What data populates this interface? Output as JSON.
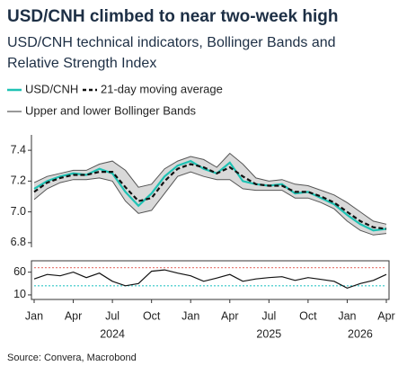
{
  "chart_data": [
    {
      "type": "line",
      "title": "USD/CNH climbed to near two-week high",
      "subtitle": "USD/CNH technical indicators, Bollinger Bands and Relative Strength Index",
      "source": "Source: Convera, Macrobond",
      "x": [
        "2024-01",
        "2024-02",
        "2024-03",
        "2024-04",
        "2024-05",
        "2024-06",
        "2024-07",
        "2024-08",
        "2024-09",
        "2024-10",
        "2024-11",
        "2024-12",
        "2025-01",
        "2025-02",
        "2025-03",
        "2025-04",
        "2025-05",
        "2025-06",
        "2025-07",
        "2025-08",
        "2025-09",
        "2025-10",
        "2025-11",
        "2025-12",
        "2026-01",
        "2026-02",
        "2026-03",
        "2026-04"
      ],
      "xlim": [
        "2024-01",
        "2026-04"
      ],
      "ylim": [
        6.77,
        7.5
      ],
      "yticks": [
        {
          "value": 6.8,
          "label": "6.8"
        },
        {
          "value": 7.0,
          "label": "7.0"
        },
        {
          "value": 7.2,
          "label": "7.2"
        },
        {
          "value": 7.4,
          "label": "7.4"
        }
      ],
      "series": [
        {
          "name": "Upper and lower Bollinger Bands",
          "type": "band",
          "color": "#555555",
          "fill": "#d9d9d9",
          "upper": [
            7.19,
            7.23,
            7.25,
            7.27,
            7.27,
            7.31,
            7.33,
            7.27,
            7.16,
            7.18,
            7.28,
            7.33,
            7.36,
            7.34,
            7.29,
            7.38,
            7.31,
            7.22,
            7.2,
            7.21,
            7.18,
            7.17,
            7.14,
            7.11,
            7.06,
            7.0,
            6.94,
            6.92
          ],
          "lower": [
            7.08,
            7.15,
            7.19,
            7.21,
            7.21,
            7.22,
            7.2,
            7.07,
            6.99,
            7.01,
            7.12,
            7.23,
            7.26,
            7.23,
            7.21,
            7.21,
            7.15,
            7.14,
            7.14,
            7.14,
            7.09,
            7.09,
            7.06,
            7.02,
            6.94,
            6.88,
            6.85,
            6.86
          ]
        },
        {
          "name": "USD/CNH",
          "type": "line",
          "color": "#1fc2b4",
          "values": [
            7.15,
            7.2,
            7.23,
            7.25,
            7.24,
            7.28,
            7.25,
            7.13,
            7.04,
            7.12,
            7.23,
            7.3,
            7.33,
            7.28,
            7.25,
            7.32,
            7.2,
            7.18,
            7.17,
            7.18,
            7.12,
            7.13,
            7.09,
            7.05,
            6.98,
            6.92,
            6.88,
            6.89
          ]
        },
        {
          "name": "21-day moving average",
          "type": "line",
          "color": "#111111",
          "dash": true,
          "values": [
            7.13,
            7.19,
            7.22,
            7.24,
            7.24,
            7.26,
            7.26,
            7.16,
            7.07,
            7.09,
            7.2,
            7.28,
            7.31,
            7.29,
            7.25,
            7.29,
            7.23,
            7.18,
            7.17,
            7.17,
            7.13,
            7.13,
            7.1,
            7.06,
            7.0,
            6.94,
            6.9,
            6.89
          ]
        }
      ]
    },
    {
      "type": "line",
      "x": [
        "2024-01",
        "2024-02",
        "2024-03",
        "2024-04",
        "2024-05",
        "2024-06",
        "2024-07",
        "2024-08",
        "2024-09",
        "2024-10",
        "2024-11",
        "2024-12",
        "2025-01",
        "2025-02",
        "2025-03",
        "2025-04",
        "2025-05",
        "2025-06",
        "2025-07",
        "2025-08",
        "2025-09",
        "2025-10",
        "2025-11",
        "2025-12",
        "2026-01",
        "2026-02",
        "2026-03",
        "2026-04"
      ],
      "xlim": [
        "2024-01",
        "2026-04"
      ],
      "ylim": [
        0,
        85
      ],
      "yticks": [
        10,
        60
      ],
      "reference_lines": [
        {
          "value": 70,
          "color": "#e8807a"
        },
        {
          "value": 30,
          "color": "#2fc6c6"
        }
      ],
      "series": [
        {
          "color": "#111111",
          "values": [
            45,
            55,
            52,
            60,
            48,
            58,
            40,
            30,
            35,
            62,
            65,
            58,
            52,
            40,
            47,
            55,
            40,
            45,
            48,
            50,
            42,
            48,
            44,
            40,
            25,
            35,
            42,
            55
          ]
        }
      ],
      "xticks": [
        {
          "value": "2024-01",
          "label": "Jan"
        },
        {
          "value": "2024-04",
          "label": "Apr"
        },
        {
          "value": "2024-07",
          "label": "Jul"
        },
        {
          "value": "2024-10",
          "label": "Oct"
        },
        {
          "value": "2025-01",
          "label": "Jan"
        },
        {
          "value": "2025-04",
          "label": "Apr"
        },
        {
          "value": "2025-07",
          "label": "Jul"
        },
        {
          "value": "2025-10",
          "label": "Oct"
        },
        {
          "value": "2026-01",
          "label": "Jan"
        },
        {
          "value": "2026-04",
          "label": "Apr"
        }
      ],
      "year_labels": [
        {
          "value": "2024-07",
          "label": "2024"
        },
        {
          "value": "2025-07",
          "label": "2025"
        },
        {
          "value": "2026-02",
          "label": "2026"
        }
      ]
    }
  ]
}
